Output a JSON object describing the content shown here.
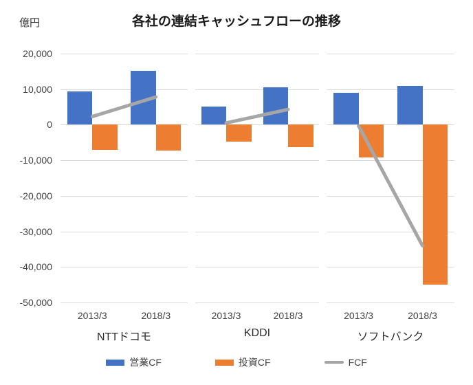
{
  "unit_label": "億円",
  "title": "各社の連結キャッシュフローの推移",
  "legend": [
    {
      "label": "営業CF",
      "type": "bar",
      "color": "#4472C4"
    },
    {
      "label": "投資CF",
      "type": "bar",
      "color": "#ED7D31"
    },
    {
      "label": "FCF",
      "type": "line",
      "color": "#A6A6A6"
    }
  ],
  "chart_data": {
    "type": "bar",
    "title": "各社の連結キャッシュフローの推移",
    "ylabel": "億円",
    "ylim": [
      -50000,
      20000
    ],
    "ytick_interval": 10000,
    "ytick_labels": [
      "20,000",
      "10,000",
      "0",
      "-10,000",
      "-20,000",
      "-30,000",
      "-40,000",
      "-50,000"
    ],
    "grid": true,
    "legend_position": "bottom",
    "categories": [
      "2013/3",
      "2018/3"
    ],
    "groups": [
      {
        "company": "NTTドコモ",
        "series": [
          {
            "name": "営業CF",
            "type": "bar",
            "color": "#4472C4",
            "values": [
              9300,
              15100
            ]
          },
          {
            "name": "投資CF",
            "type": "bar",
            "color": "#ED7D31",
            "values": [
              -7000,
              -7300
            ]
          },
          {
            "name": "FCF",
            "type": "line",
            "color": "#A6A6A6",
            "values": [
              2300,
              7800
            ]
          }
        ]
      },
      {
        "company": "KDDI",
        "series": [
          {
            "name": "営業CF",
            "type": "bar",
            "color": "#4472C4",
            "values": [
              5200,
              10600
            ]
          },
          {
            "name": "投資CF",
            "type": "bar",
            "color": "#ED7D31",
            "values": [
              -4700,
              -6300
            ]
          },
          {
            "name": "FCF",
            "type": "line",
            "color": "#A6A6A6",
            "values": [
              500,
              4300
            ]
          }
        ]
      },
      {
        "company": "ソフトバンク",
        "series": [
          {
            "name": "営業CF",
            "type": "bar",
            "color": "#4472C4",
            "values": [
              8900,
              10900
            ]
          },
          {
            "name": "投資CF",
            "type": "bar",
            "color": "#ED7D31",
            "values": [
              -9200,
              -44900
            ]
          },
          {
            "name": "FCF",
            "type": "line",
            "color": "#A6A6A6",
            "values": [
              -300,
              -34000
            ]
          }
        ]
      }
    ],
    "colors": {
      "operating_cf": "#4472C4",
      "investing_cf": "#ED7D31",
      "fcf_line": "#A6A6A6",
      "gridline": "#D9D9D9"
    }
  }
}
